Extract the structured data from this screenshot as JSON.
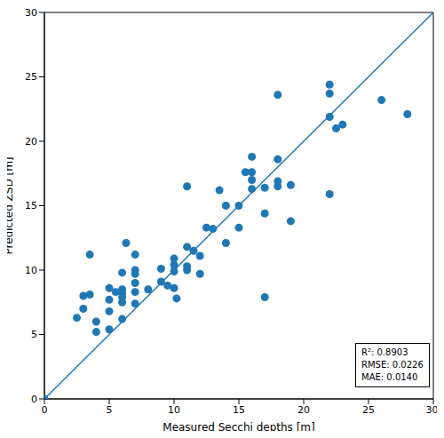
{
  "chart_data": {
    "type": "scatter",
    "x_label": "Measured Secchi depths [m]",
    "y_label": "Predicted ZSD [m]",
    "xlim": [
      0,
      30
    ],
    "ylim": [
      0,
      30
    ],
    "xticks": [
      0,
      5,
      10,
      15,
      20,
      25,
      30
    ],
    "yticks": [
      0,
      5,
      10,
      15,
      20,
      25,
      30
    ],
    "grid": false,
    "annotations": [
      "R²: 0.8903",
      "RMSE: 0.0226",
      "MAE: 0.0140"
    ],
    "series": [
      {
        "type": "scatter",
        "marker": "circle",
        "color": "#1f77b4",
        "x": [
          0,
          2.5,
          3,
          3,
          3.5,
          3.5,
          4,
          4,
          5,
          5,
          5,
          5,
          5.5,
          6,
          6,
          6,
          6,
          6,
          6,
          6.3,
          7,
          7,
          7,
          7,
          7,
          7,
          8,
          9,
          9,
          9.5,
          10,
          10,
          10,
          10,
          10.2,
          11,
          11,
          11,
          11,
          11.5,
          12,
          12,
          12.5,
          13,
          13.5,
          14,
          14,
          15,
          15,
          15.5,
          16,
          16,
          16,
          16,
          17,
          17,
          17,
          18,
          18,
          18,
          18,
          19,
          19,
          22,
          22,
          22,
          22,
          22.5,
          23,
          26,
          28
        ],
        "values": [
          0,
          6.3,
          8,
          7,
          8.1,
          11.2,
          6,
          5.2,
          5.4,
          6.8,
          7.7,
          8.6,
          8.3,
          6.2,
          7.5,
          7.9,
          8.2,
          8.5,
          9.8,
          12.1,
          7.4,
          8.3,
          9,
          9.7,
          10,
          11.2,
          8.5,
          9.1,
          10.1,
          8.8,
          8.6,
          9.9,
          10.4,
          10.9,
          7.8,
          10,
          10.3,
          11.8,
          16.5,
          11.5,
          9.7,
          11.1,
          13.3,
          13.2,
          16.2,
          12.1,
          15,
          13.3,
          15,
          17.6,
          16.3,
          17,
          17.6,
          18.8,
          7.9,
          14.4,
          16.4,
          16.5,
          16.9,
          18.6,
          23.6,
          13.8,
          16.6,
          15.9,
          21.9,
          23.7,
          24.4,
          21,
          21.3,
          23.2,
          22.1
        ]
      },
      {
        "type": "line",
        "line_style": "solid",
        "color": "#1f77b4",
        "x": [
          0,
          30
        ],
        "values": [
          0,
          30
        ]
      }
    ]
  }
}
